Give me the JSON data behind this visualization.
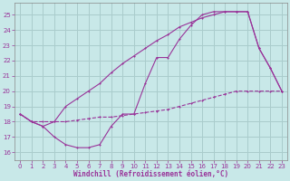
{
  "title": "Windchill (Refroidissement éolien,°C)",
  "bg_color": "#c8e8e8",
  "grid_color": "#aacccc",
  "line_color": "#993399",
  "xlim": [
    -0.5,
    23.5
  ],
  "ylim": [
    15.5,
    25.8
  ],
  "yticks": [
    16,
    17,
    18,
    19,
    20,
    21,
    22,
    23,
    24,
    25
  ],
  "xticks": [
    0,
    1,
    2,
    3,
    4,
    5,
    6,
    7,
    8,
    9,
    10,
    11,
    12,
    13,
    14,
    15,
    16,
    17,
    18,
    19,
    20,
    21,
    22,
    23
  ],
  "curve1_x": [
    0,
    1,
    2,
    3,
    4,
    5,
    6,
    7,
    8,
    9,
    10,
    11,
    12,
    13,
    14,
    15,
    16,
    17,
    18,
    19,
    20,
    21,
    22,
    23
  ],
  "curve1_y": [
    18.5,
    18.0,
    17.7,
    17.0,
    16.5,
    16.3,
    16.3,
    16.5,
    17.7,
    18.5,
    18.5,
    20.5,
    22.2,
    22.2,
    23.4,
    24.3,
    25.0,
    25.2,
    25.2,
    25.2,
    25.2,
    22.8,
    21.5,
    20.0
  ],
  "curve2_x": [
    0,
    1,
    2,
    3,
    4,
    5,
    6,
    7,
    8,
    9,
    10,
    11,
    12,
    13,
    14,
    15,
    16,
    17,
    18,
    19,
    20,
    21,
    22,
    23
  ],
  "curve2_y": [
    18.5,
    18.0,
    17.7,
    18.0,
    19.0,
    19.5,
    20.0,
    20.5,
    21.2,
    21.8,
    22.3,
    22.8,
    23.3,
    23.7,
    24.2,
    24.5,
    24.8,
    25.0,
    25.2,
    25.2,
    25.2,
    22.8,
    21.5,
    20.0
  ],
  "curve3_x": [
    0,
    1,
    2,
    3,
    4,
    5,
    6,
    7,
    8,
    9,
    10,
    11,
    12,
    13,
    14,
    15,
    16,
    17,
    18,
    19,
    20,
    21,
    22,
    23
  ],
  "curve3_y": [
    18.5,
    18.0,
    18.0,
    18.0,
    18.0,
    18.1,
    18.2,
    18.3,
    18.3,
    18.4,
    18.5,
    18.6,
    18.7,
    18.8,
    19.0,
    19.2,
    19.4,
    19.6,
    19.8,
    20.0,
    20.0,
    20.0,
    20.0,
    20.0
  ]
}
